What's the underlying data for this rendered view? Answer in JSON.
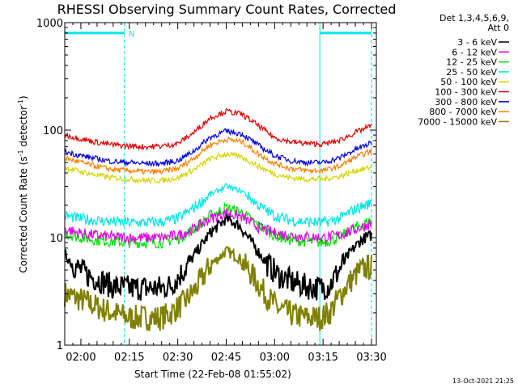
{
  "chart_data": {
    "type": "line",
    "title": "RHESSI Observing Summary Count Rates, Corrected",
    "xlabel": "Start Time (22-Feb-08 01:55:02)",
    "ylabel": "Corrected Count Rate (s",
    "ylabel_sup1": "-1",
    "ylabel_mid": " detector",
    "ylabel_sup2": "-1",
    "ylabel_end": ")",
    "yscale": "log",
    "ylim": [
      1,
      1000
    ],
    "xlim_minutes": [
      115,
      211.5
    ],
    "x_ticks": [
      {
        "label": "02:00",
        "minute": 120
      },
      {
        "label": "02:15",
        "minute": 135
      },
      {
        "label": "02:30",
        "minute": 150
      },
      {
        "label": "02:45",
        "minute": 165
      },
      {
        "label": "03:00",
        "minute": 180
      },
      {
        "label": "03:15",
        "minute": 195
      },
      {
        "label": "03:30",
        "minute": 210
      }
    ],
    "y_ticks": [
      {
        "label": "1",
        "value": 1
      },
      {
        "label": "10",
        "value": 10
      },
      {
        "label": "100",
        "value": 100
      },
      {
        "label": "1000",
        "value": 1000
      }
    ],
    "attenuator_label": "Det 1,3,4,5,6,9,",
    "attenuator_state": "Att 0",
    "night_bar_label": "N",
    "night_intervals_minutes": [
      [
        115,
        133.5
      ],
      [
        194,
        210
      ]
    ],
    "night_bar_value": 800,
    "night_bar_color": "#00e5e5",
    "solid_markers_minutes": [
      115,
      194
    ],
    "dashed_markers_minutes": [
      133.5,
      210
    ],
    "series": [
      {
        "name": "3 - 6 keV",
        "color": "#000000",
        "x": [
          115,
          118,
          122,
          126,
          130,
          135,
          140,
          145,
          148,
          152,
          156,
          160,
          165,
          169,
          173,
          177,
          181,
          186,
          190,
          194,
          197,
          200,
          203,
          206,
          208,
          210
        ],
        "values": [
          7,
          5.5,
          4.5,
          4,
          3.5,
          3.4,
          3.4,
          3.4,
          3.6,
          5,
          7.5,
          11,
          15,
          13,
          9,
          6,
          4.5,
          3.8,
          3.5,
          3.4,
          3.6,
          5,
          7,
          9,
          10,
          10.5
        ]
      },
      {
        "name": "6 - 12 keV",
        "color": "#e000e0",
        "x": [
          115,
          120,
          125,
          130,
          135,
          140,
          145,
          150,
          155,
          160,
          165,
          170,
          175,
          180,
          185,
          190,
          195,
          200,
          205,
          210
        ],
        "values": [
          12,
          11,
          10.5,
          10.2,
          10,
          10,
          10,
          10.5,
          12,
          15,
          17,
          15.5,
          12.5,
          11,
          10.5,
          10.2,
          10,
          10.5,
          12,
          13.5
        ]
      },
      {
        "name": "12 - 25 keV",
        "color": "#00e000",
        "x": [
          115,
          120,
          125,
          130,
          135,
          140,
          145,
          150,
          155,
          160,
          165,
          170,
          175,
          180,
          185,
          190,
          195,
          200,
          205,
          210
        ],
        "values": [
          11,
          10,
          9.5,
          9.2,
          9,
          9,
          9,
          9.8,
          12,
          16,
          19,
          17,
          13,
          10.5,
          9.5,
          9.2,
          9,
          10,
          12.5,
          14.5
        ]
      },
      {
        "name": "25 - 50 keV",
        "color": "#00e5e5",
        "x": [
          115,
          120,
          125,
          130,
          135,
          140,
          145,
          150,
          155,
          160,
          165,
          170,
          175,
          180,
          185,
          190,
          195,
          200,
          205,
          210
        ],
        "values": [
          16,
          15,
          14.5,
          14,
          13.8,
          13.8,
          14,
          15,
          19,
          25,
          30,
          27,
          20,
          16,
          14.5,
          14,
          13.8,
          15,
          18.5,
          21
        ]
      },
      {
        "name": "50 - 100 keV",
        "color": "#d4d400",
        "x": [
          115,
          120,
          125,
          130,
          135,
          140,
          145,
          150,
          155,
          160,
          165,
          170,
          175,
          180,
          185,
          190,
          195,
          200,
          205,
          210
        ],
        "values": [
          45,
          41,
          38,
          36,
          35,
          34,
          34,
          36,
          43,
          54,
          60,
          56,
          46,
          39,
          36,
          35,
          35,
          37,
          42,
          45
        ]
      },
      {
        "name": "100 - 300 keV",
        "color": "#e00000",
        "x": [
          115,
          120,
          125,
          130,
          135,
          140,
          145,
          150,
          155,
          160,
          165,
          170,
          175,
          180,
          185,
          190,
          195,
          200,
          205,
          210
        ],
        "values": [
          90,
          83,
          77,
          73,
          71,
          70,
          71,
          75,
          95,
          130,
          150,
          140,
          110,
          85,
          78,
          75,
          74,
          80,
          95,
          110
        ]
      },
      {
        "name": "300 - 800 keV",
        "color": "#0000e0",
        "x": [
          115,
          120,
          125,
          130,
          135,
          140,
          145,
          150,
          155,
          160,
          165,
          170,
          175,
          180,
          185,
          190,
          195,
          200,
          205,
          210
        ],
        "values": [
          63,
          58,
          54,
          51,
          50,
          49,
          49,
          52,
          64,
          86,
          98,
          92,
          72,
          58,
          52,
          50,
          50,
          55,
          66,
          76
        ]
      },
      {
        "name": "800 - 7000 keV",
        "color": "#ff8000",
        "x": [
          115,
          120,
          125,
          130,
          135,
          140,
          145,
          150,
          155,
          160,
          165,
          170,
          175,
          180,
          185,
          190,
          195,
          200,
          205,
          210
        ],
        "values": [
          55,
          50,
          46,
          43,
          42,
          41,
          41,
          44,
          55,
          73,
          82,
          78,
          60,
          49,
          44,
          42,
          42,
          46,
          56,
          64
        ]
      },
      {
        "name": "7000 - 15000 keV",
        "color": "#808000",
        "x": [
          115,
          118,
          122,
          126,
          130,
          135,
          140,
          145,
          148,
          152,
          156,
          160,
          165,
          169,
          173,
          177,
          181,
          186,
          190,
          194,
          197,
          200,
          203,
          206,
          208,
          210
        ],
        "values": [
          3,
          2.8,
          2.5,
          2.2,
          2,
          1.8,
          1.8,
          1.8,
          2,
          2.5,
          3.5,
          5.5,
          7.5,
          6.5,
          4.5,
          3,
          2.2,
          1.9,
          1.8,
          1.8,
          2,
          2.8,
          3.8,
          4.8,
          5.2,
          5.4
        ]
      }
    ],
    "grid": false,
    "legend_position": "right",
    "timestamp": "13-Oct-2021 21:25"
  }
}
